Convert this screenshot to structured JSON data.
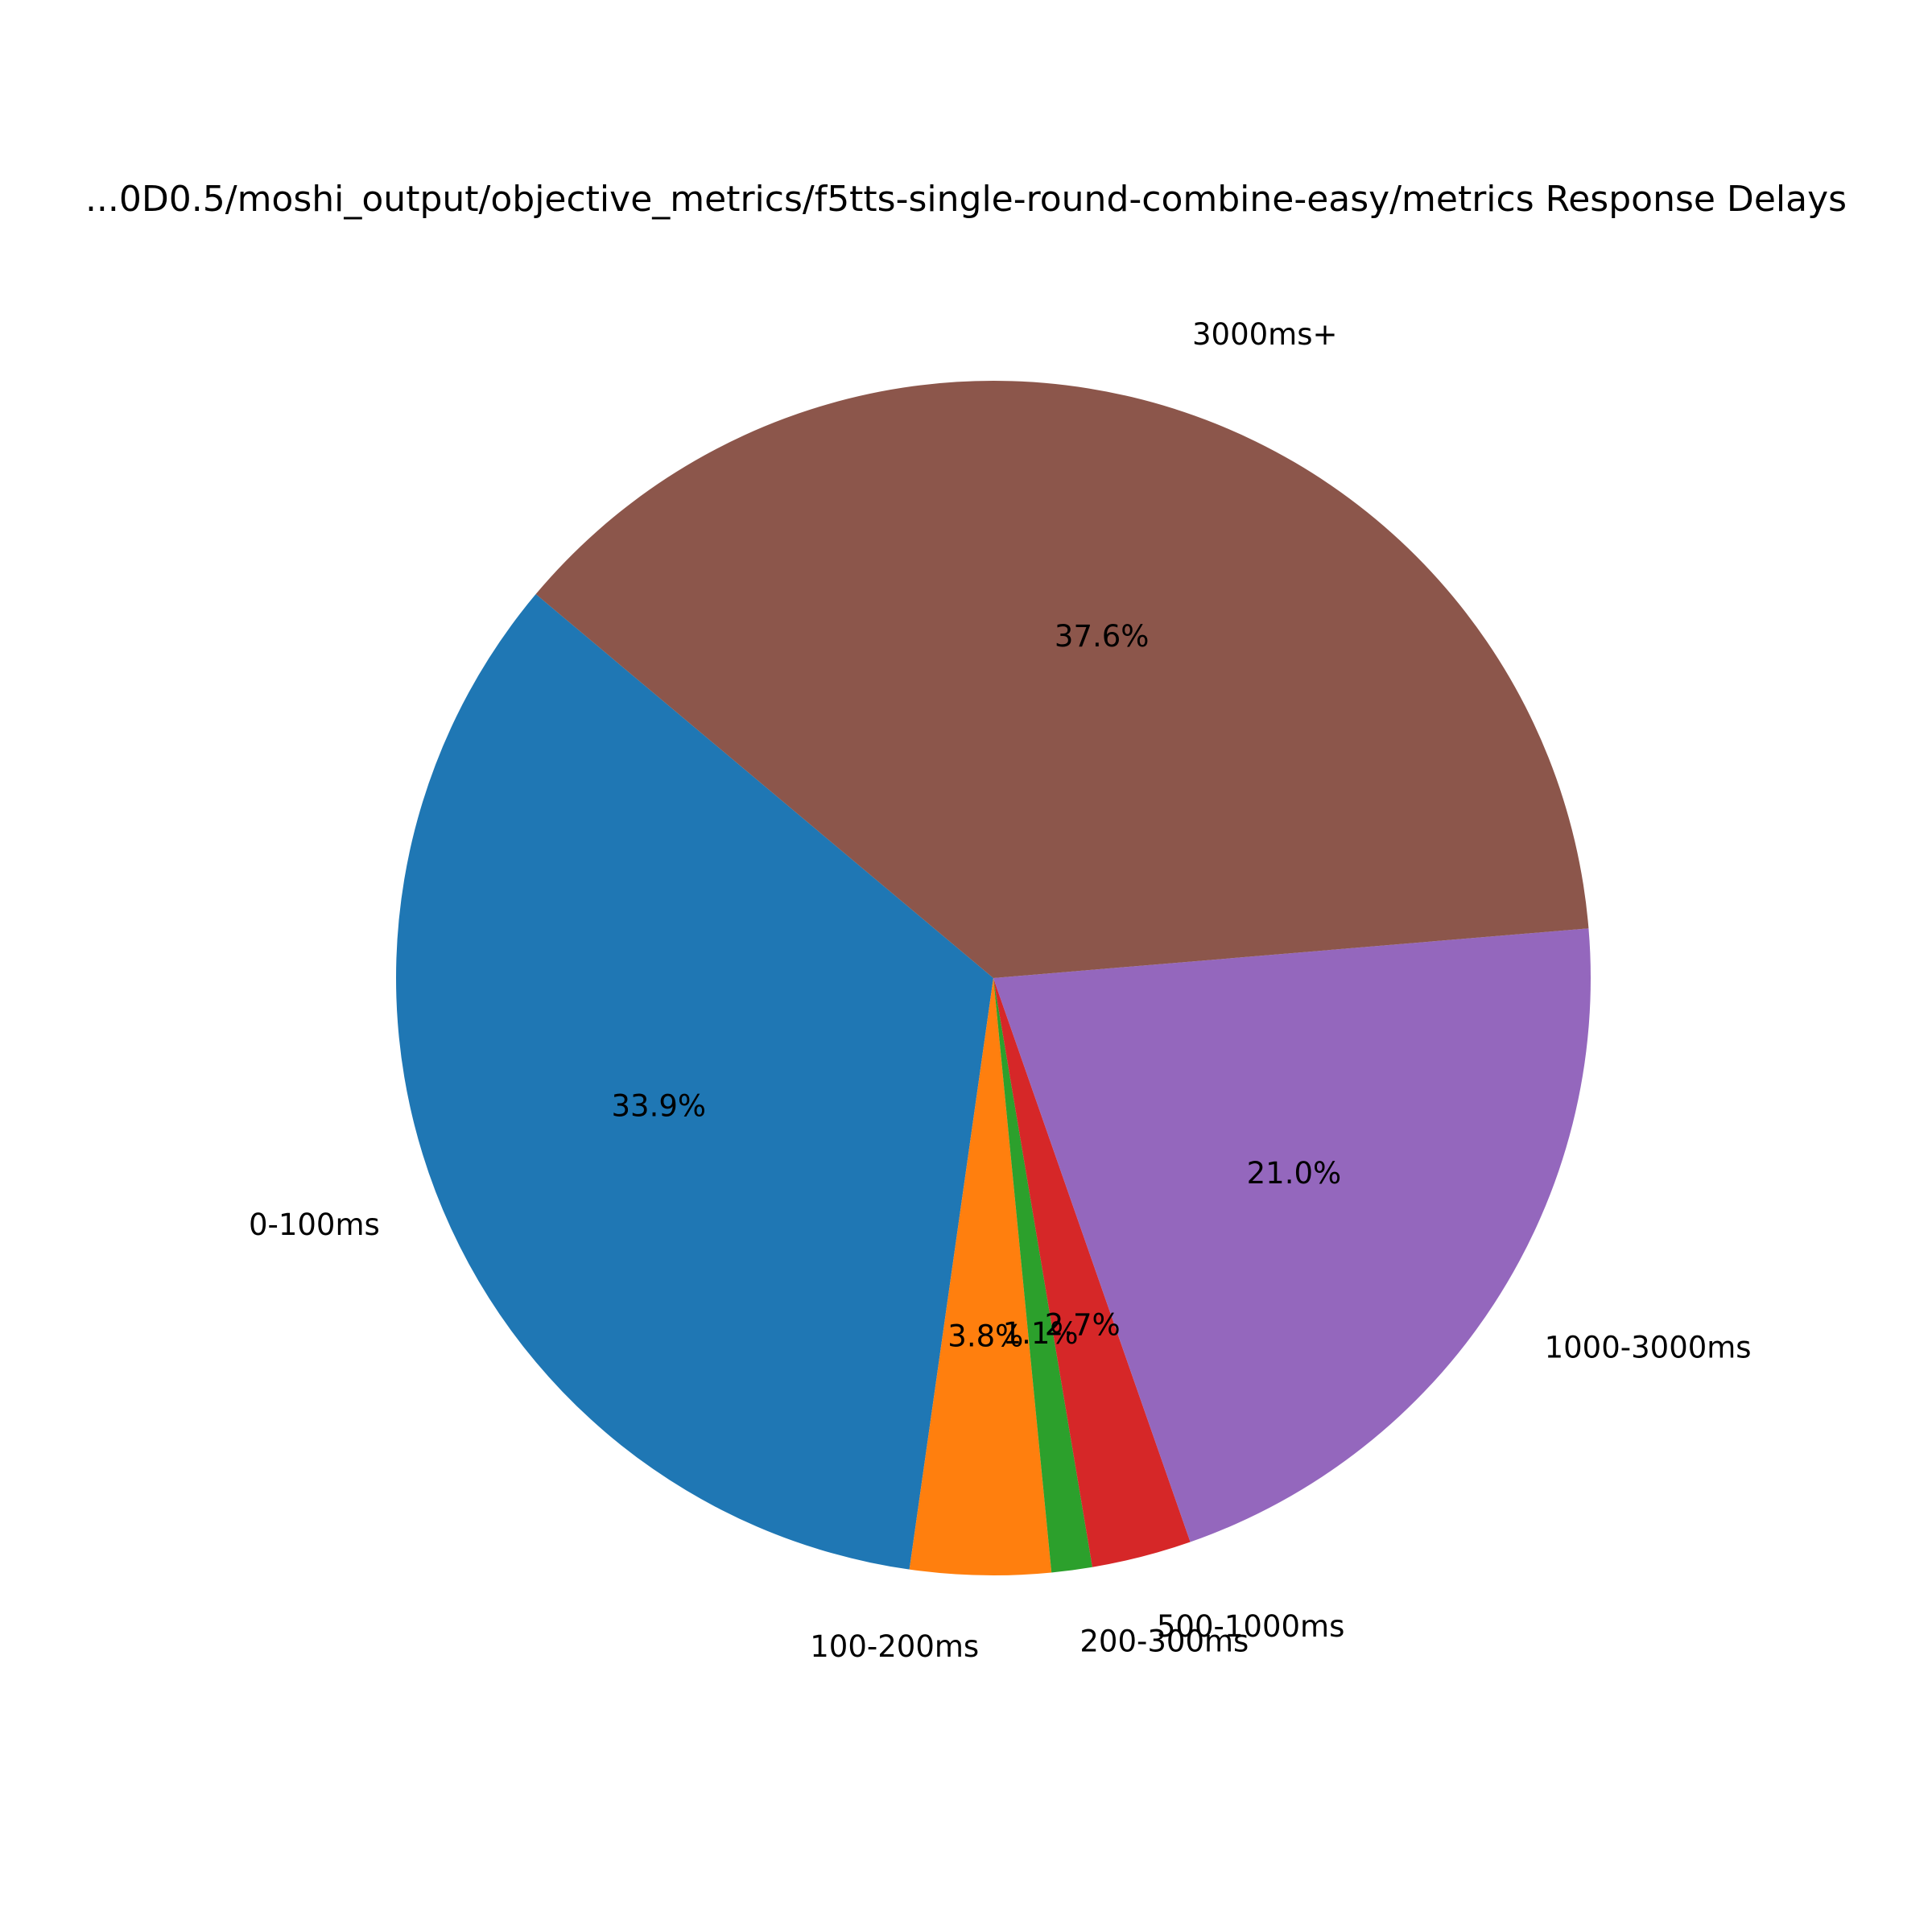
{
  "chart_data": {
    "type": "pie",
    "title": "...0D0.5/moshi_output/objective_metrics/f5tts-single-round-combine-easy/metrics Response Delays",
    "start_angle_deg": 140,
    "direction": "counterclockwise",
    "slices": [
      {
        "label": "0-100ms",
        "percent": 33.9,
        "pct_label": "33.9%",
        "color": "#1f77b4"
      },
      {
        "label": "100-200ms",
        "percent": 3.8,
        "pct_label": "3.8%",
        "color": "#ff7f0e"
      },
      {
        "label": "200-300ms",
        "percent": 1.1,
        "pct_label": "1.1%",
        "color": "#2ca02c"
      },
      {
        "label": "500-1000ms",
        "percent": 2.7,
        "pct_label": "2.7%",
        "color": "#d62728"
      },
      {
        "label": "1000-3000ms",
        "percent": 21.0,
        "pct_label": "21.0%",
        "color": "#9467bd"
      },
      {
        "label": "3000ms+",
        "percent": 37.6,
        "pct_label": "37.6%",
        "color": "#8c564b"
      }
    ]
  }
}
